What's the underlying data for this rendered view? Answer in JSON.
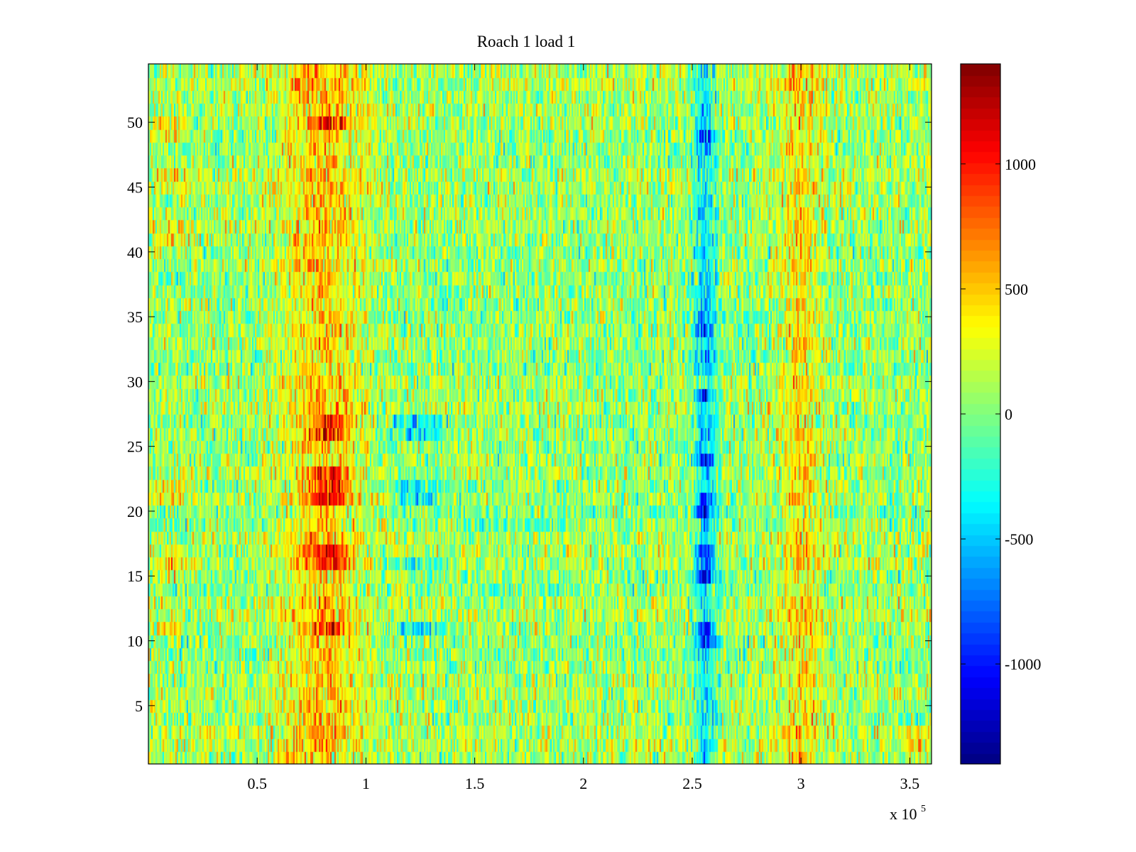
{
  "chart_data": {
    "type": "heatmap",
    "title": "Roach 1 load 1",
    "xlabel": "",
    "ylabel": "",
    "x_multiplier_label": "x 10",
    "x_multiplier_exponent": "5",
    "xlim": [
      0,
      360000
    ],
    "ylim": [
      0.5,
      54.5
    ],
    "rows": 54,
    "colormap": "jet",
    "clim": [
      -1400,
      1400
    ],
    "x_ticks": [
      {
        "value": 50000,
        "label": "0.5"
      },
      {
        "value": 100000,
        "label": "1"
      },
      {
        "value": 150000,
        "label": "1.5"
      },
      {
        "value": 200000,
        "label": "2"
      },
      {
        "value": 250000,
        "label": "2.5"
      },
      {
        "value": 300000,
        "label": "3"
      },
      {
        "value": 350000,
        "label": "3.5"
      }
    ],
    "y_ticks": [
      {
        "value": 5,
        "label": "5"
      },
      {
        "value": 10,
        "label": "10"
      },
      {
        "value": 15,
        "label": "15"
      },
      {
        "value": 20,
        "label": "20"
      },
      {
        "value": 25,
        "label": "25"
      },
      {
        "value": 30,
        "label": "30"
      },
      {
        "value": 35,
        "label": "35"
      },
      {
        "value": 40,
        "label": "40"
      },
      {
        "value": 45,
        "label": "45"
      },
      {
        "value": 50,
        "label": "50"
      }
    ],
    "colorbar_ticks": [
      {
        "value": 1000,
        "label": "1000"
      },
      {
        "value": 500,
        "label": "500"
      },
      {
        "value": 0,
        "label": "0"
      },
      {
        "value": -500,
        "label": "-500"
      },
      {
        "value": -1000,
        "label": "-1000"
      }
    ],
    "features": [
      {
        "x_center": 80000,
        "x_width": 18000,
        "amplitude": 420,
        "rows": [],
        "note": "broad positive band"
      },
      {
        "x_center": 300000,
        "x_width": 10000,
        "amplitude": 330,
        "rows": [],
        "note": "positive band"
      },
      {
        "x_center": 256000,
        "x_width": 5000,
        "amplitude": -480,
        "rows": [],
        "note": "negative band"
      },
      {
        "x_center": 83000,
        "x_width": 9000,
        "amplitude": 520,
        "rows": [
          11,
          16,
          17,
          21,
          22,
          23,
          26,
          27,
          50
        ],
        "note": "red blobs"
      },
      {
        "x_center": 125000,
        "x_width": 12000,
        "amplitude": -450,
        "rows": [
          11,
          16,
          21,
          22,
          26,
          27
        ],
        "note": "blue blobs"
      },
      {
        "x_center": 256000,
        "x_width": 4500,
        "amplitude": -550,
        "rows": [
          10,
          11,
          15,
          16,
          17,
          20,
          21,
          24,
          29,
          34,
          49
        ],
        "note": "dark blue blobs"
      },
      {
        "x_center": 10000,
        "x_width": 9000,
        "amplitude": 280,
        "rows": [
          11,
          15,
          16,
          21,
          22,
          41,
          42,
          45,
          46,
          49,
          50
        ],
        "note": "left warm blobs"
      },
      {
        "x_center": 355000,
        "x_width": 5000,
        "amplitude": 380,
        "rows": [
          2,
          3
        ],
        "note": "bottom-right warm patch"
      }
    ]
  }
}
